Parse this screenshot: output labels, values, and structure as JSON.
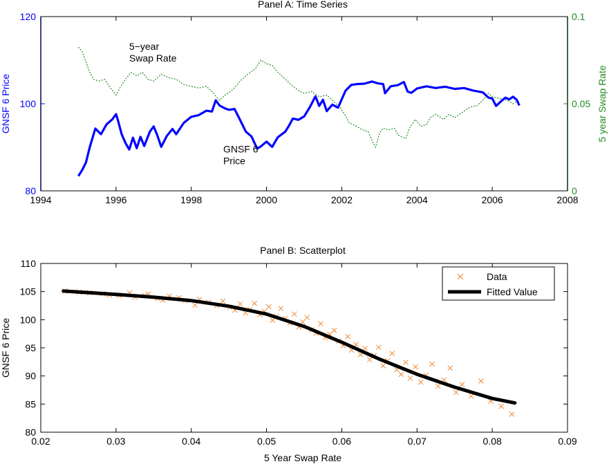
{
  "chart_data": [
    {
      "type": "line",
      "title": "Panel A: Time Series",
      "xlabel": "",
      "ylabel_left": "GNSF 6 Price",
      "ylabel_right": "5 year Swap Rate",
      "xlim": [
        1994,
        2008
      ],
      "ylim_left": [
        80,
        120
      ],
      "ylim_right": [
        0,
        0.1
      ],
      "xticks": [
        "1994",
        "1996",
        "1998",
        "2000",
        "2002",
        "2004",
        "2006",
        "2008"
      ],
      "yticks_left": [
        "80",
        "100",
        "120"
      ],
      "yticks_right": [
        "0",
        "0.05",
        "0.1"
      ],
      "grid": false,
      "colors": {
        "price": "#0000ff",
        "swap": "#228B22",
        "left_axis": "#0000ff",
        "right_axis": "#228B22"
      },
      "annotations": [
        {
          "lines": [
            "5−year",
            "Swap Rate"
          ],
          "x": 1996.35,
          "y": 0.081,
          "axis": "right"
        },
        {
          "lines": [
            "GNSF 6",
            "Price"
          ],
          "x": 1998.85,
          "y": 88.8,
          "axis": "left"
        }
      ],
      "series": [
        {
          "axis": "left",
          "style": "solid",
          "points": [
            [
              1995.0,
              83.4
            ],
            [
              1995.1,
              84.8
            ],
            [
              1995.2,
              86.5
            ],
            [
              1995.3,
              90.0
            ],
            [
              1995.45,
              94.3
            ],
            [
              1995.6,
              93.0
            ],
            [
              1995.75,
              95.3
            ],
            [
              1995.9,
              96.4
            ],
            [
              1996.0,
              97.6
            ],
            [
              1996.05,
              96.2
            ],
            [
              1996.15,
              93.0
            ],
            [
              1996.25,
              91.0
            ],
            [
              1996.35,
              89.5
            ],
            [
              1996.45,
              92.2
            ],
            [
              1996.55,
              89.8
            ],
            [
              1996.65,
              92.4
            ],
            [
              1996.75,
              90.3
            ],
            [
              1996.9,
              93.6
            ],
            [
              1997.0,
              94.8
            ],
            [
              1997.1,
              92.7
            ],
            [
              1997.2,
              90.1
            ],
            [
              1997.35,
              92.6
            ],
            [
              1997.5,
              94.2
            ],
            [
              1997.6,
              93.0
            ],
            [
              1997.8,
              95.6
            ],
            [
              1998.0,
              97.0
            ],
            [
              1998.2,
              97.4
            ],
            [
              1998.4,
              98.4
            ],
            [
              1998.55,
              98.2
            ],
            [
              1998.65,
              100.8
            ],
            [
              1998.75,
              99.6
            ],
            [
              1998.9,
              98.9
            ],
            [
              1999.0,
              98.6
            ],
            [
              1999.15,
              98.8
            ],
            [
              1999.3,
              96.2
            ],
            [
              1999.45,
              93.6
            ],
            [
              1999.6,
              92.5
            ],
            [
              1999.75,
              89.7
            ],
            [
              1999.85,
              90.2
            ],
            [
              2000.0,
              91.3
            ],
            [
              2000.15,
              90.1
            ],
            [
              2000.3,
              92.3
            ],
            [
              2000.5,
              93.6
            ],
            [
              2000.6,
              95.0
            ],
            [
              2000.7,
              96.6
            ],
            [
              2000.85,
              96.3
            ],
            [
              2001.0,
              97.1
            ],
            [
              2001.15,
              99.2
            ],
            [
              2001.3,
              101.7
            ],
            [
              2001.4,
              99.5
            ],
            [
              2001.5,
              100.9
            ],
            [
              2001.6,
              98.3
            ],
            [
              2001.75,
              99.8
            ],
            [
              2001.9,
              99.1
            ],
            [
              2002.1,
              103.0
            ],
            [
              2002.25,
              104.3
            ],
            [
              2002.4,
              104.5
            ],
            [
              2002.6,
              104.6
            ],
            [
              2002.8,
              105.1
            ],
            [
              2002.95,
              104.7
            ],
            [
              2003.1,
              104.5
            ],
            [
              2003.15,
              102.4
            ],
            [
              2003.3,
              104.0
            ],
            [
              2003.5,
              104.3
            ],
            [
              2003.65,
              105.0
            ],
            [
              2003.75,
              102.8
            ],
            [
              2003.85,
              102.5
            ],
            [
              2004.0,
              103.5
            ],
            [
              2004.25,
              104.0
            ],
            [
              2004.5,
              103.6
            ],
            [
              2004.75,
              103.9
            ],
            [
              2005.0,
              103.4
            ],
            [
              2005.25,
              103.6
            ],
            [
              2005.5,
              103.0
            ],
            [
              2005.75,
              102.6
            ],
            [
              2005.9,
              101.4
            ],
            [
              2006.0,
              101.2
            ],
            [
              2006.1,
              99.5
            ],
            [
              2006.25,
              100.7
            ],
            [
              2006.35,
              101.4
            ],
            [
              2006.45,
              101.0
            ],
            [
              2006.55,
              101.6
            ],
            [
              2006.65,
              100.9
            ],
            [
              2006.72,
              99.6
            ]
          ]
        },
        {
          "axis": "right",
          "style": "dashed",
          "points": [
            [
              1995.0,
              0.0825
            ],
            [
              1995.1,
              0.08
            ],
            [
              1995.2,
              0.074
            ],
            [
              1995.3,
              0.068
            ],
            [
              1995.4,
              0.064
            ],
            [
              1995.55,
              0.063
            ],
            [
              1995.7,
              0.064
            ],
            [
              1995.85,
              0.059
            ],
            [
              1996.0,
              0.055
            ],
            [
              1996.1,
              0.059
            ],
            [
              1996.25,
              0.064
            ],
            [
              1996.4,
              0.068
            ],
            [
              1996.55,
              0.066
            ],
            [
              1996.7,
              0.068
            ],
            [
              1996.85,
              0.064
            ],
            [
              1997.0,
              0.063
            ],
            [
              1997.2,
              0.067
            ],
            [
              1997.4,
              0.065
            ],
            [
              1997.6,
              0.064
            ],
            [
              1997.8,
              0.061
            ],
            [
              1998.0,
              0.06
            ],
            [
              1998.2,
              0.059
            ],
            [
              1998.4,
              0.06
            ],
            [
              1998.55,
              0.057
            ],
            [
              1998.75,
              0.052
            ],
            [
              1998.9,
              0.055
            ],
            [
              1999.1,
              0.058
            ],
            [
              1999.3,
              0.063
            ],
            [
              1999.5,
              0.067
            ],
            [
              1999.7,
              0.07
            ],
            [
              1999.85,
              0.075
            ],
            [
              2000.0,
              0.073
            ],
            [
              2000.15,
              0.072
            ],
            [
              2000.3,
              0.068
            ],
            [
              2000.5,
              0.064
            ],
            [
              2000.7,
              0.06
            ],
            [
              2000.9,
              0.057
            ],
            [
              2001.0,
              0.056
            ],
            [
              2001.2,
              0.057
            ],
            [
              2001.4,
              0.054
            ],
            [
              2001.6,
              0.055
            ],
            [
              2001.8,
              0.051
            ],
            [
              2001.95,
              0.048
            ],
            [
              2002.1,
              0.043
            ],
            [
              2002.2,
              0.039
            ],
            [
              2002.4,
              0.037
            ],
            [
              2002.55,
              0.035
            ],
            [
              2002.7,
              0.034
            ],
            [
              2002.8,
              0.029
            ],
            [
              2002.9,
              0.025
            ],
            [
              2003.0,
              0.033
            ],
            [
              2003.1,
              0.036
            ],
            [
              2003.25,
              0.035
            ],
            [
              2003.4,
              0.036
            ],
            [
              2003.5,
              0.032
            ],
            [
              2003.7,
              0.03
            ],
            [
              2003.8,
              0.036
            ],
            [
              2003.95,
              0.041
            ],
            [
              2004.1,
              0.037
            ],
            [
              2004.25,
              0.038
            ],
            [
              2004.35,
              0.042
            ],
            [
              2004.5,
              0.044
            ],
            [
              2004.7,
              0.041
            ],
            [
              2004.85,
              0.044
            ],
            [
              2005.0,
              0.042
            ],
            [
              2005.2,
              0.045
            ],
            [
              2005.4,
              0.048
            ],
            [
              2005.6,
              0.049
            ],
            [
              2005.75,
              0.052
            ],
            [
              2005.9,
              0.056
            ],
            [
              2006.0,
              0.054
            ],
            [
              2006.2,
              0.053
            ],
            [
              2006.4,
              0.052
            ],
            [
              2006.55,
              0.05
            ],
            [
              2006.72,
              0.052
            ]
          ]
        }
      ]
    },
    {
      "type": "scatter",
      "title": "Panel B: Scatterplot",
      "xlabel": "5 Year Swap Rate",
      "ylabel": "GNSF 6 Price",
      "xlim": [
        0.02,
        0.09
      ],
      "ylim": [
        80,
        110
      ],
      "xticks": [
        "0.02",
        "0.03",
        "0.04",
        "0.05",
        "0.06",
        "0.07",
        "0.08",
        "0.09"
      ],
      "yticks": [
        "80",
        "85",
        "90",
        "95",
        "100",
        "105",
        "110"
      ],
      "grid": false,
      "legend_position": "top-right",
      "legend": [
        {
          "label": "Data",
          "marker": "x",
          "color": "#f08a35"
        },
        {
          "label": "Fitted Value",
          "marker": "line",
          "color": "#000000"
        }
      ],
      "colors": {
        "data": "#f08a35",
        "fitted": "#000000"
      },
      "fitted": [
        [
          0.023,
          105.1
        ],
        [
          0.03,
          104.5
        ],
        [
          0.035,
          104.0
        ],
        [
          0.04,
          103.4
        ],
        [
          0.045,
          102.4
        ],
        [
          0.05,
          101.0
        ],
        [
          0.055,
          98.8
        ],
        [
          0.06,
          96.0
        ],
        [
          0.065,
          93.0
        ],
        [
          0.07,
          90.3
        ],
        [
          0.075,
          88.0
        ],
        [
          0.08,
          86.0
        ],
        [
          0.083,
          85.2
        ]
      ],
      "data": [
        [
          0.0232,
          105.1
        ],
        [
          0.0251,
          104.9
        ],
        [
          0.0265,
          104.8
        ],
        [
          0.0282,
          104.6
        ],
        [
          0.0291,
          104.4
        ],
        [
          0.0304,
          104.3
        ],
        [
          0.0318,
          104.8
        ],
        [
          0.0325,
          104.0
        ],
        [
          0.0338,
          104.3
        ],
        [
          0.0343,
          104.6
        ],
        [
          0.0355,
          103.8
        ],
        [
          0.0362,
          103.5
        ],
        [
          0.0371,
          104.2
        ],
        [
          0.0384,
          103.9
        ],
        [
          0.0392,
          103.4
        ],
        [
          0.0405,
          102.6
        ],
        [
          0.0411,
          103.6
        ],
        [
          0.0423,
          103.1
        ],
        [
          0.0434,
          102.5
        ],
        [
          0.0442,
          103.3
        ],
        [
          0.0451,
          102.2
        ],
        [
          0.0458,
          101.7
        ],
        [
          0.0465,
          102.8
        ],
        [
          0.0472,
          101.2
        ],
        [
          0.0478,
          101.8
        ],
        [
          0.0484,
          102.9
        ],
        [
          0.0491,
          100.9
        ],
        [
          0.0497,
          101.5
        ],
        [
          0.0503,
          102.3
        ],
        [
          0.0508,
          99.9
        ],
        [
          0.0513,
          100.6
        ],
        [
          0.0519,
          102.0
        ],
        [
          0.0525,
          100.2
        ],
        [
          0.0531,
          99.4
        ],
        [
          0.0537,
          101.0
        ],
        [
          0.0543,
          98.7
        ],
        [
          0.0548,
          99.6
        ],
        [
          0.0554,
          100.4
        ],
        [
          0.056,
          98.2
        ],
        [
          0.0566,
          97.6
        ],
        [
          0.0572,
          99.3
        ],
        [
          0.0578,
          96.8
        ],
        [
          0.0584,
          97.4
        ],
        [
          0.059,
          98.1
        ],
        [
          0.0596,
          96.2
        ],
        [
          0.0602,
          95.4
        ],
        [
          0.0608,
          97.0
        ],
        [
          0.0613,
          94.6
        ],
        [
          0.0619,
          95.6
        ],
        [
          0.0625,
          93.8
        ],
        [
          0.0631,
          94.9
        ],
        [
          0.0637,
          92.9
        ],
        [
          0.0643,
          93.6
        ],
        [
          0.0649,
          95.1
        ],
        [
          0.0655,
          91.8
        ],
        [
          0.0661,
          92.7
        ],
        [
          0.0667,
          94.0
        ],
        [
          0.0673,
          91.1
        ],
        [
          0.0679,
          90.3
        ],
        [
          0.0685,
          92.4
        ],
        [
          0.0691,
          89.6
        ],
        [
          0.0698,
          91.6
        ],
        [
          0.0705,
          88.9
        ],
        [
          0.0712,
          90.1
        ],
        [
          0.072,
          92.1
        ],
        [
          0.0728,
          88.2
        ],
        [
          0.0736,
          89.3
        ],
        [
          0.0744,
          91.4
        ],
        [
          0.0752,
          87.1
        ],
        [
          0.076,
          88.5
        ],
        [
          0.0772,
          86.4
        ],
        [
          0.0785,
          89.1
        ],
        [
          0.0798,
          85.5
        ],
        [
          0.0812,
          84.6
        ],
        [
          0.0826,
          83.2
        ]
      ]
    }
  ]
}
